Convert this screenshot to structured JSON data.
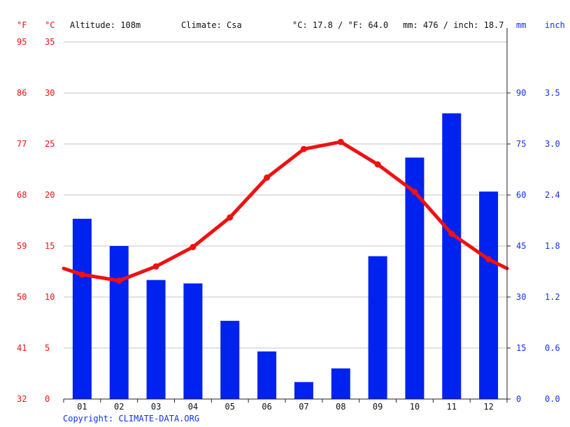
{
  "header": {
    "unit_f": "°F",
    "unit_c": "°C",
    "altitude": "Altitude: 108m",
    "climate": "Climate: Csa",
    "temp_avg": "°C: 17.8 / °F: 64.0",
    "precip_total": "mm: 476 / inch: 18.7",
    "unit_mm": "mm",
    "unit_inch": "inch"
  },
  "copyright": "Copyright: CLIMATE-DATA.ORG",
  "colors": {
    "temperature": "#ee1111",
    "precipitation": "#0022ee",
    "grid": "#c4c4c4"
  },
  "chart_data": {
    "type": "bar+line",
    "categories": [
      "01",
      "02",
      "03",
      "04",
      "05",
      "06",
      "07",
      "08",
      "09",
      "10",
      "11",
      "12"
    ],
    "series": [
      {
        "type": "bar",
        "axis": "right",
        "unit": "mm",
        "values": [
          53,
          45,
          35,
          34,
          23,
          14,
          5,
          9,
          42,
          71,
          84,
          61
        ]
      },
      {
        "type": "line",
        "axis": "left",
        "unit": "°C",
        "values": [
          12.2,
          11.6,
          13.0,
          14.9,
          17.8,
          21.7,
          24.5,
          25.2,
          23.0,
          20.3,
          16.2,
          13.7
        ],
        "edge_values": [
          12.8,
          12.8
        ]
      }
    ],
    "left_axis": {
      "celsius_ticks": [
        "0",
        "5",
        "10",
        "15",
        "20",
        "25",
        "30",
        "35"
      ],
      "fahrenheit_ticks": [
        "32",
        "41",
        "50",
        "59",
        "68",
        "77",
        "86",
        "95"
      ],
      "ylim": [
        0,
        35
      ]
    },
    "right_axis": {
      "mm_ticks": [
        "0",
        "15",
        "30",
        "45",
        "60",
        "75",
        "90"
      ],
      "inch_ticks": [
        "0.0",
        "0.6",
        "1.2",
        "1.8",
        "2.4",
        "3.0",
        "3.5"
      ],
      "ylim": [
        0,
        105
      ]
    },
    "grid": true
  }
}
